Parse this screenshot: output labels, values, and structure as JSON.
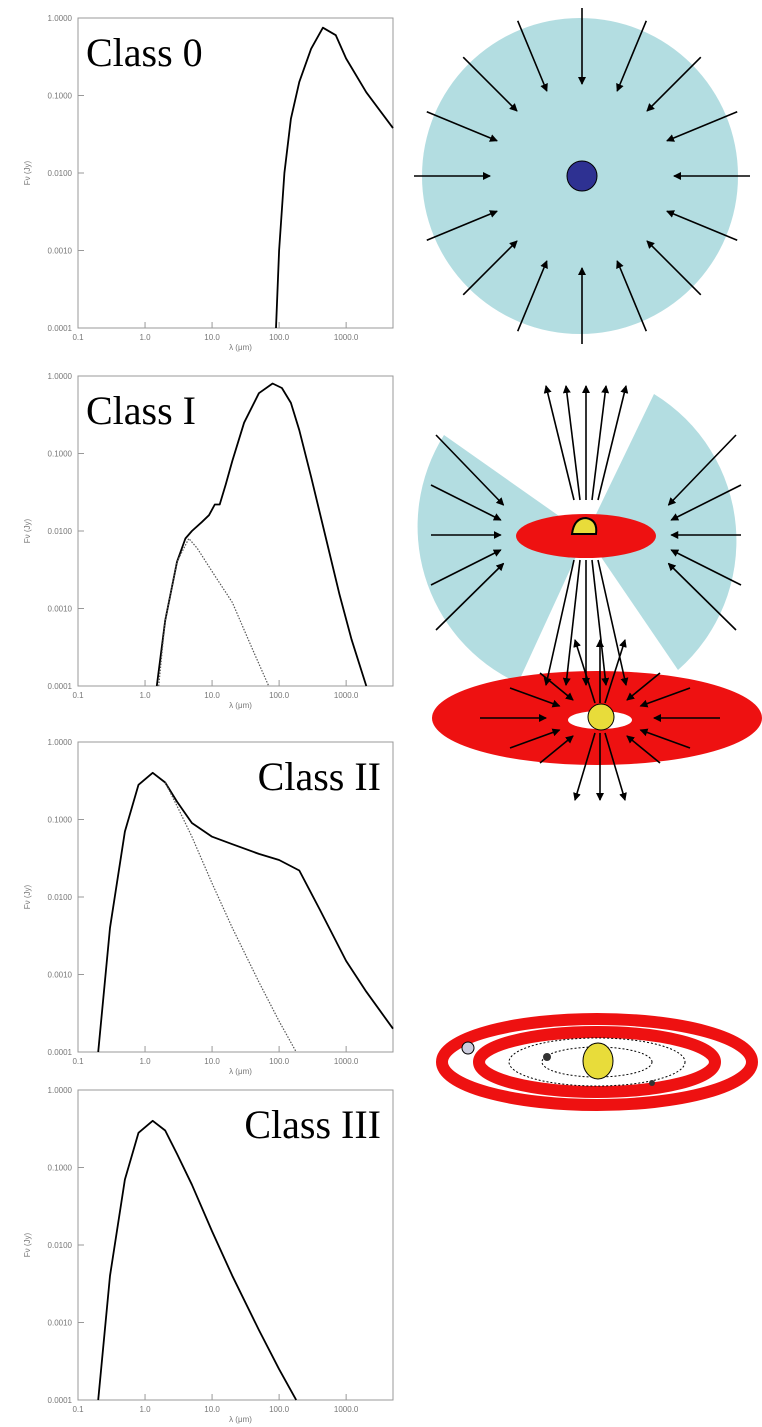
{
  "chart_data": [
    {
      "type": "line",
      "title": "Class 0",
      "xlabel": "λ (μm)",
      "ylabel": "Fν (Jy)",
      "xscale": "log",
      "yscale": "log",
      "xlim": [
        0.1,
        5000
      ],
      "ylim": [
        0.0001,
        1
      ],
      "xticks": [
        {
          "value": 0.1,
          "label": "0.1"
        },
        {
          "value": 1,
          "label": "1.0"
        },
        {
          "value": 10,
          "label": "10.0"
        },
        {
          "value": 100,
          "label": "100.0"
        },
        {
          "value": 1000,
          "label": "1000.0"
        }
      ],
      "yticks": [
        {
          "value": 0.0001,
          "label": "0.0001"
        },
        {
          "value": 0.001,
          "label": "0.0010"
        },
        {
          "value": 0.01,
          "label": "0.0100"
        },
        {
          "value": 0.1,
          "label": "0.1000"
        },
        {
          "value": 1,
          "label": "1.0000"
        }
      ],
      "series": [
        {
          "color": "#000000",
          "style": "solid",
          "x": [
            90,
            100,
            120,
            150,
            200,
            300,
            450,
            700,
            1000,
            2000,
            5000
          ],
          "values": [
            0.0001,
            0.001,
            0.01,
            0.05,
            0.15,
            0.4,
            0.75,
            0.6,
            0.3,
            0.11,
            0.038
          ]
        }
      ]
    },
    {
      "type": "line",
      "title": "Class I",
      "xlabel": "λ (μm)",
      "ylabel": "Fν (Jy)",
      "xscale": "log",
      "yscale": "log",
      "xlim": [
        0.1,
        5000
      ],
      "ylim": [
        0.0001,
        1
      ],
      "xticks": [
        {
          "value": 0.1,
          "label": "0.1"
        },
        {
          "value": 1,
          "label": "1.0"
        },
        {
          "value": 10,
          "label": "10.0"
        },
        {
          "value": 100,
          "label": "100.0"
        },
        {
          "value": 1000,
          "label": "1000.0"
        }
      ],
      "yticks": [
        {
          "value": 0.0001,
          "label": "0.0001"
        },
        {
          "value": 0.001,
          "label": "0.0010"
        },
        {
          "value": 0.01,
          "label": "0.0100"
        },
        {
          "value": 0.1,
          "label": "0.1000"
        },
        {
          "value": 1,
          "label": "1.0000"
        }
      ],
      "series": [
        {
          "color": "#000000",
          "style": "solid",
          "x": [
            1.5,
            2,
            3,
            4,
            5,
            7,
            9,
            11,
            13,
            16,
            20,
            30,
            50,
            80,
            110,
            150,
            200,
            300,
            500,
            800,
            1200,
            2000
          ],
          "values": [
            0.0001,
            0.0007,
            0.004,
            0.008,
            0.01,
            0.013,
            0.016,
            0.022,
            0.022,
            0.04,
            0.08,
            0.25,
            0.6,
            0.8,
            0.7,
            0.45,
            0.2,
            0.05,
            0.008,
            0.0015,
            0.0004,
            0.0001
          ]
        },
        {
          "color": "#555555",
          "style": "dotted",
          "x": [
            1.6,
            2,
            3,
            4.5,
            6,
            10,
            20,
            40,
            70
          ],
          "values": [
            0.0001,
            0.0007,
            0.004,
            0.008,
            0.006,
            0.003,
            0.0012,
            0.0003,
            0.0001
          ]
        }
      ]
    },
    {
      "type": "line",
      "title": "Class II",
      "xlabel": "λ (μm)",
      "ylabel": "Fν (Jy)",
      "xscale": "log",
      "yscale": "log",
      "xlim": [
        0.1,
        5000
      ],
      "ylim": [
        0.0001,
        1
      ],
      "xticks": [
        {
          "value": 0.1,
          "label": "0.1"
        },
        {
          "value": 1,
          "label": "1.0"
        },
        {
          "value": 10,
          "label": "10.0"
        },
        {
          "value": 100,
          "label": "100.0"
        },
        {
          "value": 1000,
          "label": "1000.0"
        }
      ],
      "yticks": [
        {
          "value": 0.0001,
          "label": "0.0001"
        },
        {
          "value": 0.001,
          "label": "0.0010"
        },
        {
          "value": 0.01,
          "label": "0.0100"
        },
        {
          "value": 0.1,
          "label": "0.1000"
        },
        {
          "value": 1,
          "label": "1.0000"
        }
      ],
      "series": [
        {
          "color": "#000000",
          "style": "solid",
          "x": [
            0.2,
            0.3,
            0.5,
            0.8,
            1.3,
            2,
            3,
            5,
            10,
            20,
            50,
            100,
            200,
            400,
            1000,
            2000,
            5000
          ],
          "values": [
            0.0001,
            0.004,
            0.07,
            0.28,
            0.4,
            0.3,
            0.17,
            0.09,
            0.06,
            0.048,
            0.036,
            0.03,
            0.022,
            0.007,
            0.0015,
            0.0006,
            0.0002
          ]
        },
        {
          "color": "#555555",
          "style": "dotted",
          "x": [
            2,
            3,
            5,
            10,
            20,
            50,
            100,
            180
          ],
          "values": [
            0.3,
            0.15,
            0.06,
            0.015,
            0.004,
            0.0008,
            0.00025,
            0.0001
          ]
        }
      ]
    },
    {
      "type": "line",
      "title": "Class III",
      "xlabel": "λ (μm)",
      "ylabel": "Fν (Jy)",
      "xscale": "log",
      "yscale": "log",
      "xlim": [
        0.1,
        5000
      ],
      "ylim": [
        0.0001,
        1
      ],
      "xticks": [
        {
          "value": 0.1,
          "label": "0.1"
        },
        {
          "value": 1,
          "label": "1.0"
        },
        {
          "value": 10,
          "label": "10.0"
        },
        {
          "value": 100,
          "label": "100.0"
        },
        {
          "value": 1000,
          "label": "1000.0"
        }
      ],
      "yticks": [
        {
          "value": 0.0001,
          "label": "0.0001"
        },
        {
          "value": 0.001,
          "label": "0.0010"
        },
        {
          "value": 0.01,
          "label": "0.0100"
        },
        {
          "value": 0.1,
          "label": "0.1000"
        },
        {
          "value": 1,
          "label": "1.0000"
        }
      ],
      "series": [
        {
          "color": "#000000",
          "style": "solid",
          "x": [
            0.2,
            0.3,
            0.5,
            0.8,
            1.3,
            2,
            3,
            5,
            10,
            20,
            50,
            100,
            180
          ],
          "values": [
            0.0001,
            0.004,
            0.07,
            0.28,
            0.4,
            0.3,
            0.15,
            0.06,
            0.015,
            0.004,
            0.0008,
            0.00025,
            0.0001
          ]
        }
      ]
    }
  ]
}
